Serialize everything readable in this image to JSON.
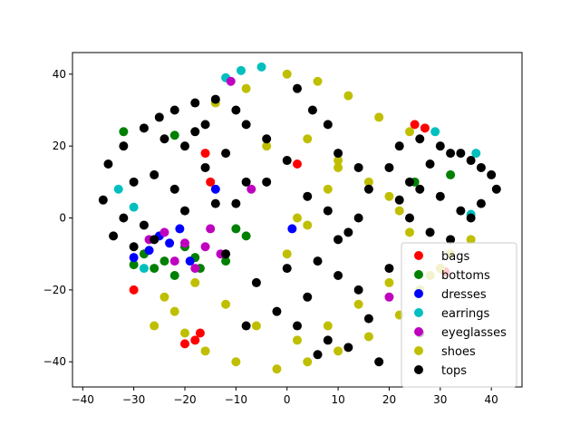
{
  "chart_data": {
    "type": "scatter",
    "title": "",
    "xlabel": "",
    "ylabel": "",
    "xlim": [
      -42,
      46
    ],
    "ylim": [
      -47,
      46
    ],
    "xticks": [
      -40,
      -30,
      -20,
      -10,
      0,
      10,
      20,
      30,
      40
    ],
    "yticks": [
      -40,
      -20,
      0,
      20,
      40
    ],
    "grid": false,
    "legend_position": "lower-right",
    "series": [
      {
        "name": "bags",
        "color": "#ff0000",
        "x": [
          -20,
          -18,
          -17,
          -15,
          -16,
          25,
          27,
          -30,
          31,
          2
        ],
        "y": [
          -35,
          -34,
          -32,
          10,
          18,
          26,
          25,
          -20,
          -15,
          15
        ]
      },
      {
        "name": "bottoms",
        "color": "#008000",
        "x": [
          -28,
          -24,
          -20,
          -18,
          -26,
          -30,
          -22,
          -17,
          -32,
          -12,
          25,
          32,
          -8,
          -10,
          -22
        ],
        "y": [
          -10,
          -12,
          -8,
          -11,
          -14,
          -13,
          -16,
          -14,
          24,
          -12,
          10,
          12,
          -5,
          -3,
          23
        ]
      },
      {
        "name": "dresses",
        "color": "#0000ff",
        "x": [
          -27,
          -23,
          -19,
          -25,
          -30,
          -21,
          -14,
          1
        ],
        "y": [
          -9,
          -7,
          -12,
          -5,
          -11,
          -3,
          8,
          -3
        ]
      },
      {
        "name": "earrings",
        "color": "#00bfbf",
        "x": [
          -12,
          -9,
          -5,
          37,
          29,
          -30,
          -33,
          36,
          -28
        ],
        "y": [
          39,
          41,
          42,
          18,
          24,
          3,
          8,
          1,
          -14
        ]
      },
      {
        "name": "eyeglasses",
        "color": "#bf00bf",
        "x": [
          -20,
          -16,
          -13,
          -24,
          -18,
          -27,
          -22,
          -15,
          20,
          -11,
          -7
        ],
        "y": [
          -7,
          -8,
          -10,
          -4,
          -14,
          -6,
          -12,
          -3,
          -22,
          38,
          8
        ]
      },
      {
        "name": "shoes",
        "color": "#bfbf00",
        "x": [
          -22,
          -20,
          -16,
          -10,
          -2,
          4,
          10,
          16,
          22,
          26,
          -18,
          -12,
          -6,
          2,
          8,
          14,
          20,
          -14,
          -8,
          0,
          6,
          12,
          18,
          24,
          -4,
          4,
          10,
          -24,
          -26,
          28,
          30,
          32,
          36,
          0,
          4,
          20,
          22,
          24,
          16,
          10,
          8,
          2
        ],
        "y": [
          -26,
          -32,
          -37,
          -40,
          -42,
          -40,
          -37,
          -33,
          -27,
          -20,
          -18,
          -24,
          -30,
          -34,
          -30,
          -24,
          -18,
          32,
          36,
          40,
          38,
          34,
          28,
          24,
          20,
          22,
          16,
          -22,
          -30,
          -16,
          -14,
          -10,
          -6,
          -10,
          -2,
          6,
          2,
          -4,
          10,
          14,
          8,
          0
        ]
      },
      {
        "name": "tops",
        "color": "#000000",
        "x": [
          -35,
          -32,
          -28,
          -25,
          -22,
          -18,
          -14,
          -10,
          -8,
          -30,
          -26,
          -22,
          -16,
          -12,
          -32,
          -28,
          -20,
          -14,
          -24,
          -18,
          -36,
          -34,
          -30,
          -26,
          -12,
          -8,
          -20,
          -16,
          24,
          28,
          32,
          36,
          40,
          22,
          26,
          30,
          34,
          38,
          24,
          28,
          32,
          36,
          20,
          22,
          26,
          30,
          34,
          38,
          41,
          2,
          5,
          8,
          10,
          14,
          16,
          -4,
          0,
          4,
          8,
          12,
          6,
          10,
          14,
          -2,
          2,
          8,
          12,
          18,
          0,
          4,
          -6,
          -8,
          6,
          10,
          14,
          16,
          -4,
          -10,
          20,
          26
        ],
        "y": [
          15,
          20,
          25,
          28,
          30,
          32,
          33,
          30,
          26,
          10,
          12,
          8,
          14,
          18,
          0,
          -2,
          2,
          4,
          22,
          24,
          5,
          -5,
          -8,
          -6,
          -10,
          10,
          20,
          26,
          10,
          15,
          18,
          16,
          12,
          5,
          8,
          6,
          2,
          4,
          0,
          -4,
          -6,
          0,
          14,
          20,
          22,
          20,
          18,
          14,
          8,
          36,
          30,
          26,
          18,
          14,
          8,
          22,
          16,
          6,
          2,
          -4,
          -12,
          -16,
          -20,
          -26,
          -30,
          -34,
          -36,
          -40,
          -14,
          -22,
          -18,
          -30,
          -38,
          -6,
          0,
          -28,
          10,
          4,
          -14,
          -32
        ]
      }
    ]
  }
}
